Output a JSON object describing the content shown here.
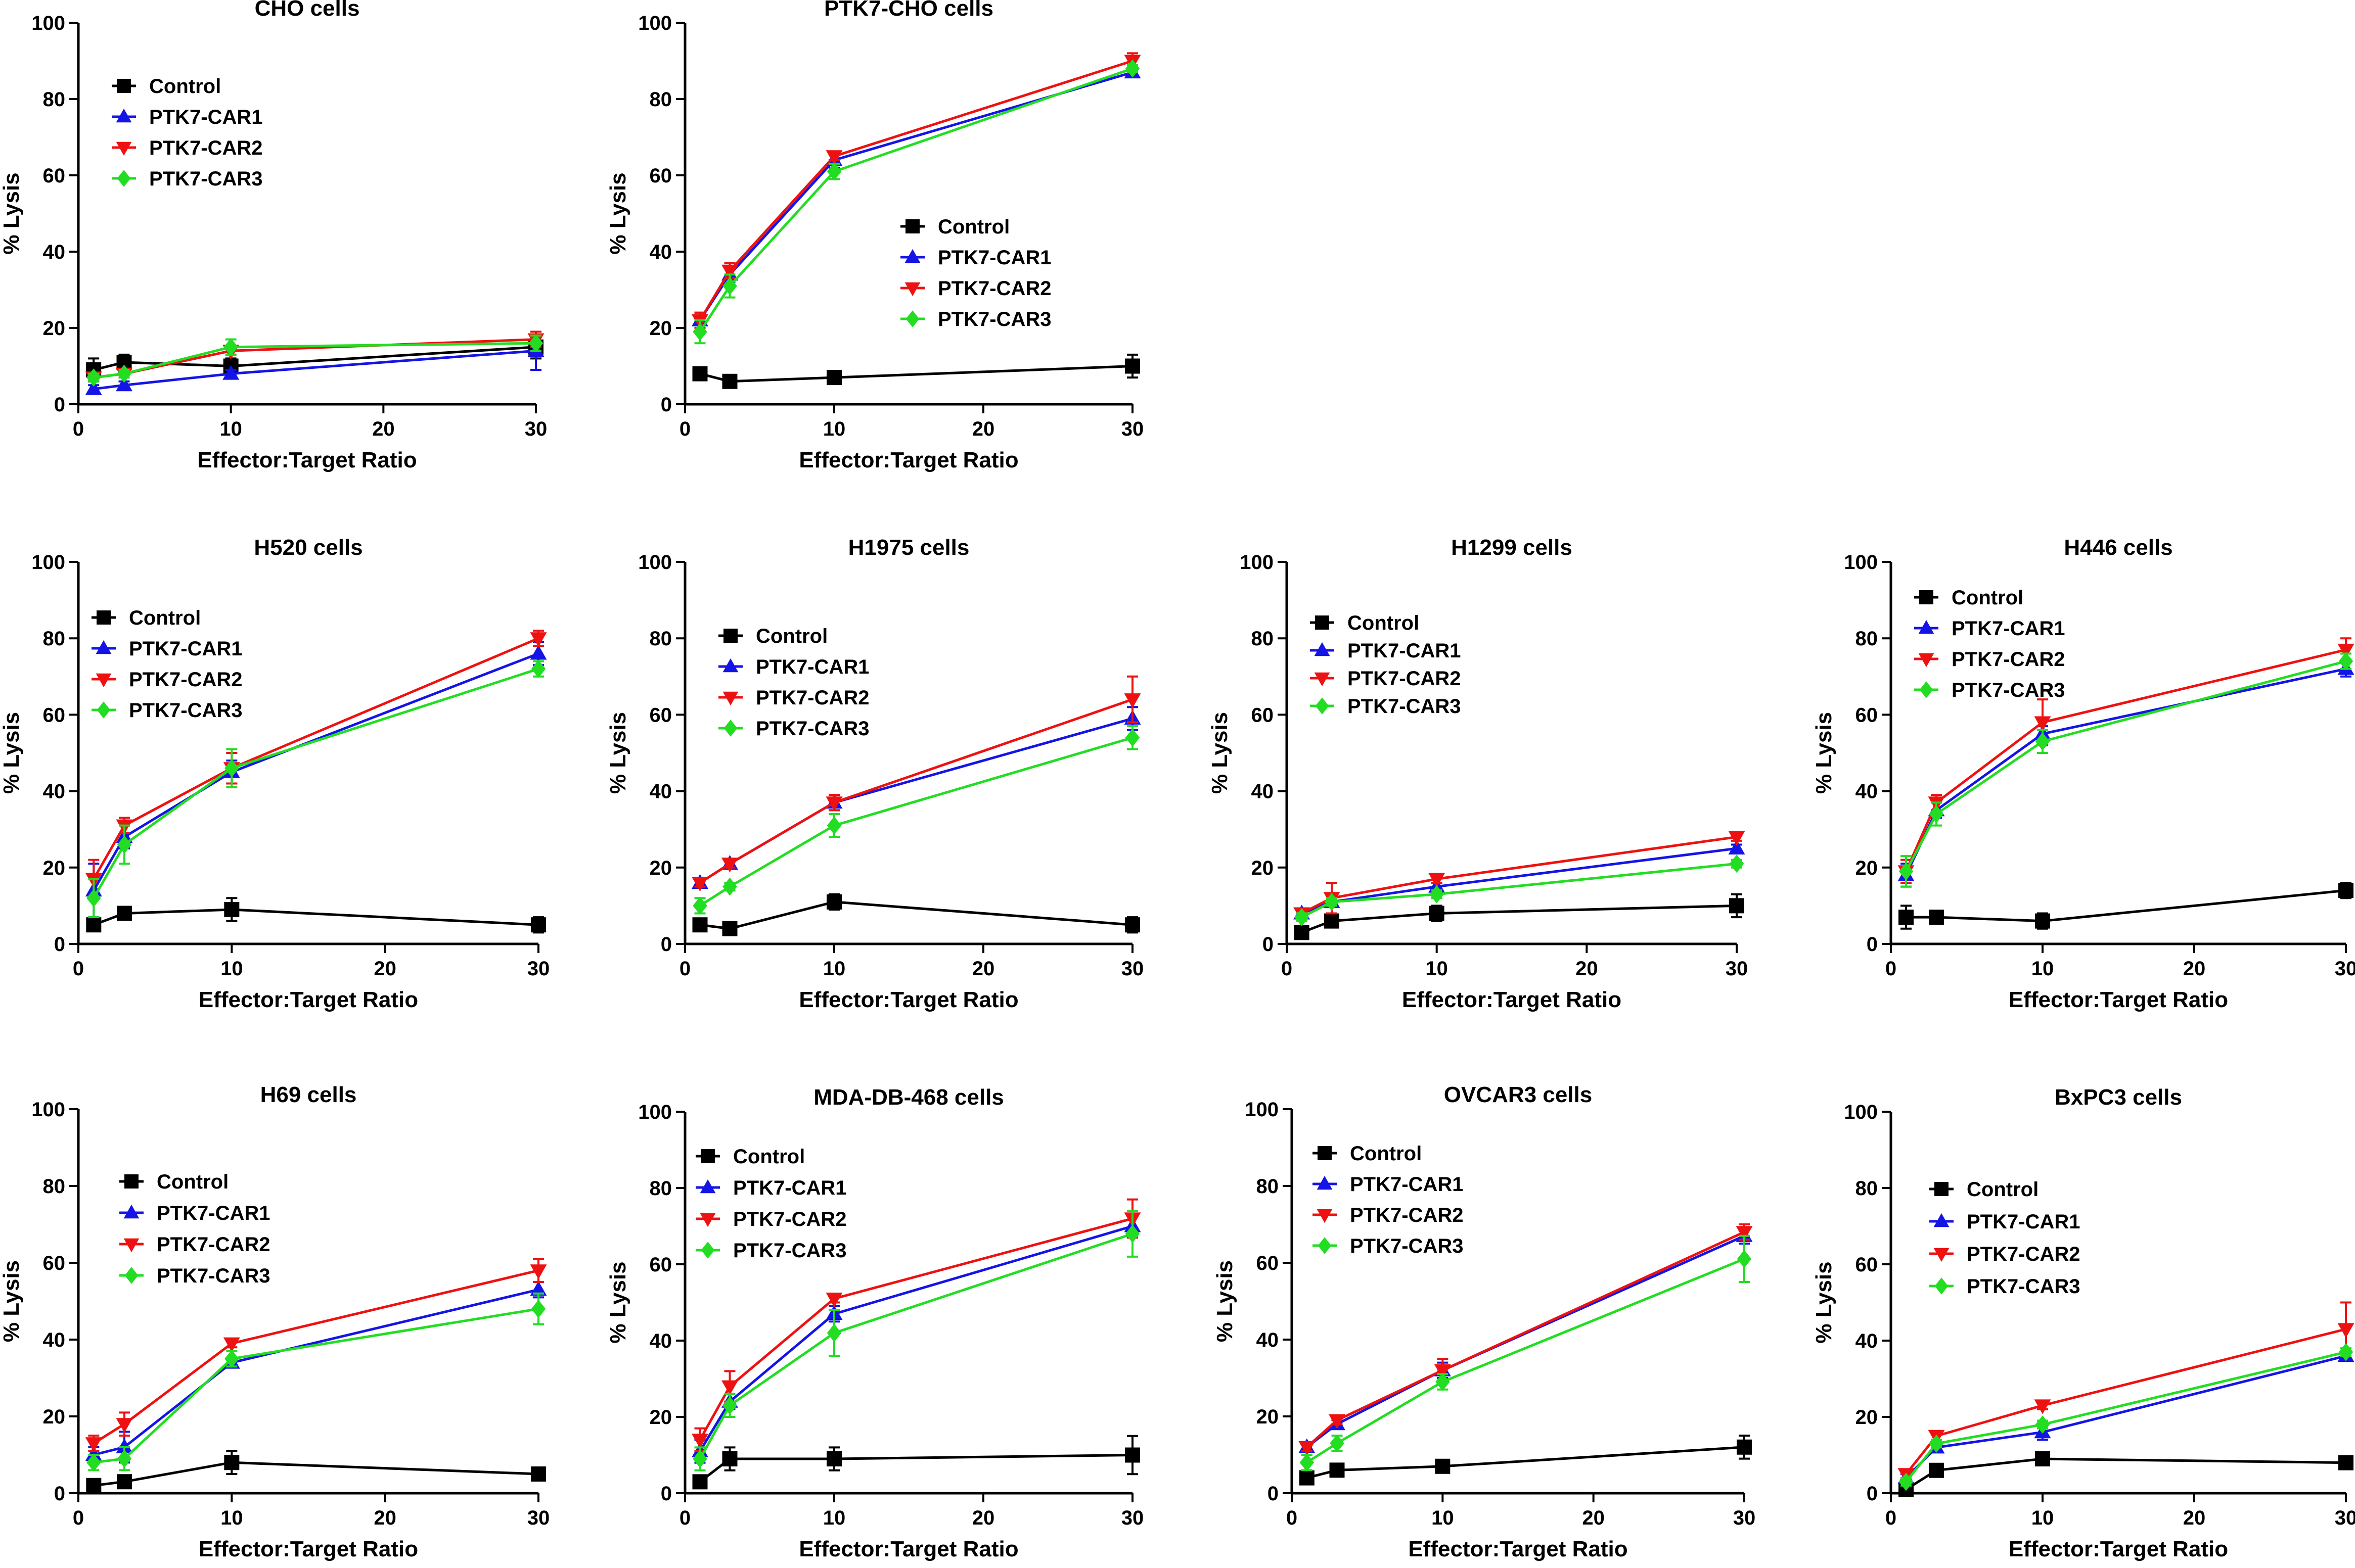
{
  "figure": {
    "colors": {
      "Control": "#000000",
      "PTK7-CAR1": "#1414e6",
      "PTK7-CAR2": "#ee1111",
      "PTK7-CAR3": "#22dd22"
    }
  },
  "chart_data": [
    {
      "type": "line",
      "title": "CHO cells",
      "xlabel": "Effector:Target Ratio",
      "ylabel": "% Lysis",
      "xlim": [
        0,
        30
      ],
      "ylim": [
        0,
        100
      ],
      "xticks": [
        "0",
        "10",
        "20",
        "30"
      ],
      "yticks": [
        "0",
        "20",
        "40",
        "60",
        "80",
        "100"
      ],
      "legend_entries": [
        "Control",
        "PTK7-CAR1",
        "PTK7-CAR2",
        "PTK7-CAR3"
      ],
      "x": [
        1,
        3,
        10,
        30
      ],
      "series": [
        {
          "name": "Control",
          "marker": "square",
          "values": [
            9,
            11,
            10,
            15
          ],
          "errors": [
            3,
            2,
            2,
            3
          ]
        },
        {
          "name": "PTK7-CAR1",
          "marker": "triangle-up",
          "values": [
            4,
            5,
            8,
            14
          ],
          "errors": [
            1,
            1,
            1,
            5
          ]
        },
        {
          "name": "PTK7-CAR2",
          "marker": "triangle-down",
          "values": [
            7,
            8,
            14,
            17
          ],
          "errors": [
            1,
            1,
            1,
            2
          ]
        },
        {
          "name": "PTK7-CAR3",
          "marker": "diamond",
          "values": [
            7,
            8,
            15,
            16
          ],
          "errors": [
            1,
            1,
            2,
            2
          ]
        }
      ]
    },
    {
      "type": "line",
      "title": "PTK7-CHO cells",
      "xlabel": "Effector:Target Ratio",
      "ylabel": "% Lysis",
      "xlim": [
        0,
        30
      ],
      "ylim": [
        0,
        100
      ],
      "xticks": [
        "0",
        "10",
        "20",
        "30"
      ],
      "yticks": [
        "0",
        "20",
        "40",
        "60",
        "80",
        "100"
      ],
      "legend_entries": [
        "Control",
        "PTK7-CAR1",
        "PTK7-CAR2",
        "PTK7-CAR3"
      ],
      "x": [
        1,
        3,
        10,
        30
      ],
      "series": [
        {
          "name": "Control",
          "marker": "square",
          "values": [
            8,
            6,
            7,
            10
          ],
          "errors": [
            1,
            1,
            1,
            3
          ]
        },
        {
          "name": "PTK7-CAR1",
          "marker": "triangle-up",
          "values": [
            22,
            34,
            64,
            87
          ],
          "errors": [
            2,
            2,
            2,
            1
          ]
        },
        {
          "name": "PTK7-CAR2",
          "marker": "triangle-down",
          "values": [
            22,
            35,
            65,
            90
          ],
          "errors": [
            2,
            2,
            1,
            2
          ]
        },
        {
          "name": "PTK7-CAR3",
          "marker": "diamond",
          "values": [
            19,
            31,
            61,
            88
          ],
          "errors": [
            3,
            3,
            2,
            1
          ]
        }
      ]
    },
    {
      "type": "line",
      "title": "H520 cells",
      "xlabel": "Effector:Target Ratio",
      "ylabel": "% Lysis",
      "xlim": [
        0,
        30
      ],
      "ylim": [
        0,
        100
      ],
      "xticks": [
        "0",
        "10",
        "20",
        "30"
      ],
      "yticks": [
        "0",
        "20",
        "40",
        "60",
        "80",
        "100"
      ],
      "legend_entries": [
        "Control",
        "PTK7-CAR1",
        "PTK7-CAR2",
        "PTK7-CAR3"
      ],
      "x": [
        1,
        3,
        10,
        30
      ],
      "series": [
        {
          "name": "Control",
          "marker": "square",
          "values": [
            5,
            8,
            9,
            5
          ],
          "errors": [
            1,
            1,
            3,
            2
          ]
        },
        {
          "name": "PTK7-CAR1",
          "marker": "triangle-up",
          "values": [
            14,
            28,
            45,
            76
          ],
          "errors": [
            7,
            3,
            3,
            3
          ]
        },
        {
          "name": "PTK7-CAR2",
          "marker": "triangle-down",
          "values": [
            17,
            31,
            46,
            80
          ],
          "errors": [
            5,
            2,
            4,
            2
          ]
        },
        {
          "name": "PTK7-CAR3",
          "marker": "diamond",
          "values": [
            12,
            26,
            46,
            72
          ],
          "errors": [
            5,
            5,
            5,
            2
          ]
        }
      ]
    },
    {
      "type": "line",
      "title": "H1975 cells",
      "xlabel": "Effector:Target Ratio",
      "ylabel": "% Lysis",
      "xlim": [
        0,
        30
      ],
      "ylim": [
        0,
        100
      ],
      "xticks": [
        "0",
        "10",
        "20",
        "30"
      ],
      "yticks": [
        "0",
        "20",
        "40",
        "60",
        "80",
        "100"
      ],
      "legend_entries": [
        "Control",
        "PTK7-CAR1",
        "PTK7-CAR2",
        "PTK7-CAR3"
      ],
      "x": [
        1,
        3,
        10,
        30
      ],
      "series": [
        {
          "name": "Control",
          "marker": "square",
          "values": [
            5,
            4,
            11,
            5
          ],
          "errors": [
            1,
            1,
            2,
            2
          ]
        },
        {
          "name": "PTK7-CAR1",
          "marker": "triangle-up",
          "values": [
            16,
            21,
            37,
            59
          ],
          "errors": [
            1,
            1,
            2,
            3
          ]
        },
        {
          "name": "PTK7-CAR2",
          "marker": "triangle-down",
          "values": [
            16,
            21,
            37,
            64
          ],
          "errors": [
            1,
            1,
            2,
            6
          ]
        },
        {
          "name": "PTK7-CAR3",
          "marker": "diamond",
          "values": [
            10,
            15,
            31,
            54
          ],
          "errors": [
            2,
            1,
            3,
            3
          ]
        }
      ]
    },
    {
      "type": "line",
      "title": "H1299 cells",
      "xlabel": "Effector:Target Ratio",
      "ylabel": "% Lysis",
      "xlim": [
        0,
        30
      ],
      "ylim": [
        0,
        100
      ],
      "xticks": [
        "0",
        "10",
        "20",
        "30"
      ],
      "yticks": [
        "0",
        "20",
        "40",
        "60",
        "80",
        "100"
      ],
      "legend_entries": [
        "Control",
        "PTK7-CAR1",
        "PTK7-CAR2",
        "PTK7-CAR3"
      ],
      "x": [
        1,
        3,
        10,
        30
      ],
      "series": [
        {
          "name": "Control",
          "marker": "square",
          "values": [
            3,
            6,
            8,
            10
          ],
          "errors": [
            1,
            1,
            2,
            3
          ]
        },
        {
          "name": "PTK7-CAR1",
          "marker": "triangle-up",
          "values": [
            8,
            11,
            15,
            25
          ],
          "errors": [
            1,
            1,
            1,
            1
          ]
        },
        {
          "name": "PTK7-CAR2",
          "marker": "triangle-down",
          "values": [
            8,
            12,
            17,
            28
          ],
          "errors": [
            1,
            4,
            1,
            1
          ]
        },
        {
          "name": "PTK7-CAR3",
          "marker": "diamond",
          "values": [
            7,
            11,
            13,
            21
          ],
          "errors": [
            1,
            1,
            1,
            1
          ]
        }
      ]
    },
    {
      "type": "line",
      "title": "H446 cells",
      "xlabel": "Effector:Target Ratio",
      "ylabel": "% Lysis",
      "xlim": [
        0,
        30
      ],
      "ylim": [
        0,
        100
      ],
      "xticks": [
        "0",
        "10",
        "20",
        "30"
      ],
      "yticks": [
        "0",
        "20",
        "40",
        "60",
        "80",
        "100"
      ],
      "legend_entries": [
        "Control",
        "PTK7-CAR1",
        "PTK7-CAR2",
        "PTK7-CAR3"
      ],
      "x": [
        1,
        3,
        10,
        30
      ],
      "series": [
        {
          "name": "Control",
          "marker": "square",
          "values": [
            7,
            7,
            6,
            14
          ],
          "errors": [
            3,
            1,
            2,
            2
          ]
        },
        {
          "name": "PTK7-CAR1",
          "marker": "triangle-up",
          "values": [
            18,
            35,
            55,
            72
          ],
          "errors": [
            3,
            2,
            2,
            2
          ]
        },
        {
          "name": "PTK7-CAR2",
          "marker": "triangle-down",
          "values": [
            19,
            37,
            58,
            77
          ],
          "errors": [
            3,
            2,
            6,
            3
          ]
        },
        {
          "name": "PTK7-CAR3",
          "marker": "diamond",
          "values": [
            19,
            34,
            53,
            74
          ],
          "errors": [
            4,
            3,
            3,
            2
          ]
        }
      ]
    },
    {
      "type": "line",
      "title": "H69 cells",
      "xlabel": "Effector:Target Ratio",
      "ylabel": "% Lysis",
      "xlim": [
        0,
        30
      ],
      "ylim": [
        0,
        100
      ],
      "xticks": [
        "0",
        "10",
        "20",
        "30"
      ],
      "yticks": [
        "0",
        "20",
        "40",
        "60",
        "80",
        "100"
      ],
      "legend_entries": [
        "Control",
        "PTK7-CAR1",
        "PTK7-CAR2",
        "PTK7-CAR3"
      ],
      "x": [
        1,
        3,
        10,
        30
      ],
      "series": [
        {
          "name": "Control",
          "marker": "square",
          "values": [
            2,
            3,
            8,
            5
          ],
          "errors": [
            1,
            1,
            3,
            1
          ]
        },
        {
          "name": "PTK7-CAR1",
          "marker": "triangle-up",
          "values": [
            10,
            12,
            34,
            53
          ],
          "errors": [
            2,
            4,
            1,
            2
          ]
        },
        {
          "name": "PTK7-CAR2",
          "marker": "triangle-down",
          "values": [
            13,
            18,
            39,
            58
          ],
          "errors": [
            2,
            3,
            1,
            3
          ]
        },
        {
          "name": "PTK7-CAR3",
          "marker": "diamond",
          "values": [
            8,
            9,
            35,
            48
          ],
          "errors": [
            2,
            3,
            2,
            4
          ]
        }
      ]
    },
    {
      "type": "line",
      "title": "MDA-DB-468 cells",
      "xlabel": "Effector:Target Ratio",
      "ylabel": "% Lysis",
      "xlim": [
        0,
        30
      ],
      "ylim": [
        0,
        100
      ],
      "xticks": [
        "0",
        "10",
        "20",
        "30"
      ],
      "yticks": [
        "0",
        "20",
        "40",
        "60",
        "80",
        "100"
      ],
      "legend_entries": [
        "Control",
        "PTK7-CAR1",
        "PTK7-CAR2",
        "PTK7-CAR3"
      ],
      "x": [
        1,
        3,
        10,
        30
      ],
      "series": [
        {
          "name": "Control",
          "marker": "square",
          "values": [
            3,
            9,
            9,
            10
          ],
          "errors": [
            1,
            3,
            3,
            5
          ]
        },
        {
          "name": "PTK7-CAR1",
          "marker": "triangle-up",
          "values": [
            11,
            24,
            47,
            70
          ],
          "errors": [
            3,
            2,
            2,
            3
          ]
        },
        {
          "name": "PTK7-CAR2",
          "marker": "triangle-down",
          "values": [
            14,
            28,
            51,
            72
          ],
          "errors": [
            3,
            4,
            1,
            5
          ]
        },
        {
          "name": "PTK7-CAR3",
          "marker": "diamond",
          "values": [
            9,
            23,
            42,
            68
          ],
          "errors": [
            3,
            3,
            6,
            6
          ]
        }
      ]
    },
    {
      "type": "line",
      "title": "OVCAR3 cells",
      "xlabel": "Effector:Target Ratio",
      "ylabel": "% Lysis",
      "xlim": [
        0,
        30
      ],
      "ylim": [
        0,
        100
      ],
      "xticks": [
        "0",
        "10",
        "20",
        "30"
      ],
      "yticks": [
        "0",
        "20",
        "40",
        "60",
        "80",
        "100"
      ],
      "legend_entries": [
        "Control",
        "PTK7-CAR1",
        "PTK7-CAR2",
        "PTK7-CAR3"
      ],
      "x": [
        1,
        3,
        10,
        30
      ],
      "series": [
        {
          "name": "Control",
          "marker": "square",
          "values": [
            4,
            6,
            7,
            12
          ],
          "errors": [
            1,
            1,
            1,
            3
          ]
        },
        {
          "name": "PTK7-CAR1",
          "marker": "triangle-up",
          "values": [
            12,
            18,
            32,
            67
          ],
          "errors": [
            1,
            1,
            2,
            2
          ]
        },
        {
          "name": "PTK7-CAR2",
          "marker": "triangle-down",
          "values": [
            12,
            19,
            32,
            68
          ],
          "errors": [
            1,
            1,
            3,
            2
          ]
        },
        {
          "name": "PTK7-CAR3",
          "marker": "diamond",
          "values": [
            8,
            13,
            29,
            61
          ],
          "errors": [
            2,
            2,
            2,
            6
          ]
        }
      ]
    },
    {
      "type": "line",
      "title": "BxPC3 cells",
      "xlabel": "Effector:Target Ratio",
      "ylabel": "% Lysis",
      "xlim": [
        0,
        30
      ],
      "ylim": [
        0,
        100
      ],
      "xticks": [
        "0",
        "10",
        "20",
        "30"
      ],
      "yticks": [
        "0",
        "20",
        "40",
        "60",
        "80",
        "100"
      ],
      "legend_entries": [
        "Control",
        "PTK7-CAR1",
        "PTK7-CAR2",
        "PTK7-CAR3"
      ],
      "x": [
        1,
        3,
        10,
        30
      ],
      "series": [
        {
          "name": "Control",
          "marker": "square",
          "values": [
            1,
            6,
            9,
            8
          ],
          "errors": [
            1,
            1,
            1,
            1
          ]
        },
        {
          "name": "PTK7-CAR1",
          "marker": "triangle-up",
          "values": [
            4,
            12,
            16,
            36
          ],
          "errors": [
            1,
            1,
            2,
            1
          ]
        },
        {
          "name": "PTK7-CAR2",
          "marker": "triangle-down",
          "values": [
            5,
            15,
            23,
            43
          ],
          "errors": [
            1,
            1,
            1,
            7
          ]
        },
        {
          "name": "PTK7-CAR3",
          "marker": "diamond",
          "values": [
            3,
            13,
            18,
            37
          ],
          "errors": [
            1,
            1,
            1,
            1
          ]
        }
      ]
    }
  ]
}
